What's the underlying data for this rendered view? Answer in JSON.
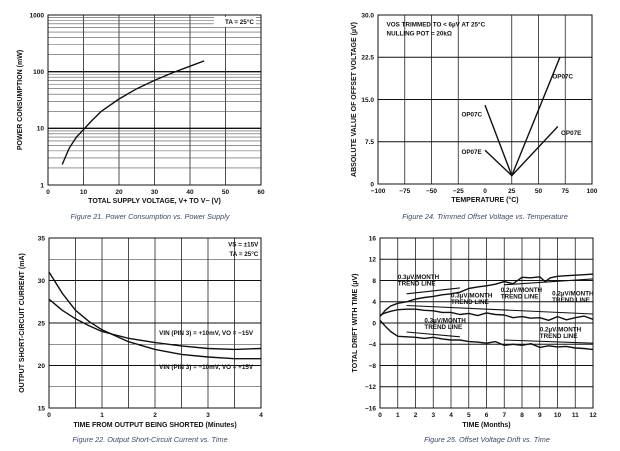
{
  "chart_data": [
    {
      "type": "line",
      "title": "Figure 21. Power Consumption vs. Power Supply",
      "xlabel": "TOTAL SUPPLY VOLTAGE, V+ TO V− (V)",
      "ylabel": "POWER CONSUMPTION (mW)",
      "xlim": [
        0,
        60
      ],
      "ylim": [
        1,
        1000
      ],
      "yscale": "log",
      "grid": true,
      "xticks": [
        0,
        10,
        20,
        30,
        40,
        50,
        60
      ],
      "xtick_labels": [
        "0",
        "10",
        "20",
        "30",
        "40",
        "50",
        "60"
      ],
      "yticks": [
        1,
        10,
        100,
        1000
      ],
      "ytick_labels": [
        "1",
        "10",
        "100",
        "1000"
      ],
      "annotations": [
        {
          "text": "TA = 25°C",
          "x": 58,
          "y": 700,
          "anchor": "end",
          "boxed": true
        }
      ],
      "series": [
        {
          "name": "power-consumption",
          "x": [
            4,
            6,
            8,
            10,
            12,
            15,
            20,
            25,
            30,
            35,
            40,
            44
          ],
          "y": [
            2.3,
            4.5,
            7,
            9.5,
            13,
            20,
            33,
            50,
            70,
            95,
            125,
            155
          ]
        }
      ]
    },
    {
      "type": "line",
      "title": "Figure 24. Trimmed Offset Voltage vs. Temperature",
      "xlabel": "TEMPERATURE (°C)",
      "ylabel": "ABSOLUTE VALUE OF OFFSET VOLTAGE (µV)",
      "xlim": [
        -100,
        100
      ],
      "ylim": [
        0,
        30
      ],
      "grid": true,
      "xticks": [
        -100,
        -75,
        -50,
        -25,
        0,
        25,
        50,
        75,
        100
      ],
      "xtick_labels": [
        "−100",
        "−75",
        "−50",
        "−25",
        "0",
        "25",
        "50",
        "75",
        "100"
      ],
      "yticks": [
        0,
        7.5,
        15,
        22.5,
        30
      ],
      "ytick_labels": [
        "0",
        "7.5",
        "15.0",
        "22.5",
        "30.0"
      ],
      "annotations": [
        {
          "text": "VOS TRIMMED TO < 6µV AT 25°C",
          "x": -92,
          "y": 28,
          "anchor": "start"
        },
        {
          "text": "NULLING POT = 20kΩ",
          "x": -92,
          "y": 26.4,
          "anchor": "start"
        },
        {
          "text": "OP07C",
          "x": -22,
          "y": 12,
          "anchor": "start"
        },
        {
          "text": "OP07E",
          "x": -22,
          "y": 5.3,
          "anchor": "start"
        },
        {
          "text": "OP07C",
          "x": 63,
          "y": 18.7,
          "anchor": "start"
        },
        {
          "text": "OP07E",
          "x": 71,
          "y": 8.7,
          "anchor": "start"
        }
      ],
      "series": [
        {
          "name": "OP07C",
          "x": [
            0,
            25,
            70
          ],
          "y": [
            14,
            1.5,
            22.5
          ]
        },
        {
          "name": "OP07E",
          "x": [
            0,
            25,
            68
          ],
          "y": [
            6,
            1.5,
            10.2
          ]
        }
      ]
    },
    {
      "type": "line",
      "title": "Figure 22. Output Short-Circuit Current vs. Time",
      "xlabel": "TIME FROM OUTPUT BEING SHORTED (Minutes)",
      "ylabel": "OUTPUT SHORT-CIRCUIT CURRENT (mA)",
      "xlim": [
        0,
        4
      ],
      "ylim": [
        15,
        35
      ],
      "grid": true,
      "xticks": [
        0,
        1,
        2,
        3,
        4
      ],
      "xtick_labels": [
        "0",
        "1",
        "2",
        "3",
        "4"
      ],
      "yticks": [
        15,
        20,
        25,
        30,
        35
      ],
      "ytick_labels": [
        "15",
        "20",
        "25",
        "30",
        "35"
      ],
      "annotations": [
        {
          "text": "VS = ±15V",
          "x": 3.95,
          "y": 34,
          "anchor": "end"
        },
        {
          "text": "TA = 25°C",
          "x": 3.95,
          "y": 32.9,
          "anchor": "end"
        },
        {
          "text": "VIN (PIN 3) = +10mV, VO = −15V",
          "x": 3.85,
          "y": 23.6,
          "anchor": "end"
        },
        {
          "text": "VIN (PIN 3) = −10mV, VO = +15V",
          "x": 3.85,
          "y": 19.6,
          "anchor": "end"
        }
      ],
      "series": [
        {
          "name": "VIN +10mV, VO -15V",
          "x": [
            0,
            0.25,
            0.5,
            0.75,
            1,
            1.5,
            2,
            2.5,
            3,
            3.5,
            4
          ],
          "y": [
            27.8,
            26.5,
            25.5,
            24.7,
            24,
            23.2,
            22.7,
            22.3,
            22,
            21.9,
            22
          ]
        },
        {
          "name": "VIN -10mV, VO +15V",
          "x": [
            0,
            0.25,
            0.5,
            0.75,
            1,
            1.5,
            2,
            2.5,
            3,
            3.5,
            4
          ],
          "y": [
            31,
            28.5,
            26.5,
            25.2,
            24.2,
            22.8,
            21.9,
            21.3,
            21,
            20.8,
            20.8
          ]
        }
      ]
    },
    {
      "type": "line",
      "title": "Figure 25. Offset Voltage Drift vs. Time",
      "xlabel": "TIME (Months)",
      "ylabel": "TOTAL DRIFT WITH TIME (µV)",
      "xlim": [
        0,
        12
      ],
      "ylim": [
        -16,
        16
      ],
      "grid": true,
      "xticks": [
        0,
        1,
        2,
        3,
        4,
        5,
        6,
        7,
        8,
        9,
        10,
        11,
        12
      ],
      "xtick_labels": [
        "0",
        "1",
        "2",
        "3",
        "4",
        "5",
        "6",
        "7",
        "8",
        "9",
        "10",
        "11",
        "12"
      ],
      "yticks": [
        -16,
        -12,
        -8,
        -4,
        0,
        4,
        8,
        12,
        16
      ],
      "ytick_labels": [
        "−16",
        "−12",
        "−8",
        "−4",
        "0",
        "4",
        "8",
        "12",
        "16"
      ],
      "annotations": [
        {
          "text": "0.3µV/MONTH",
          "x": 1,
          "y": 8.3,
          "anchor": "start"
        },
        {
          "text": "TREND LINE",
          "x": 1,
          "y": 7.1,
          "anchor": "start"
        },
        {
          "text": "0.3µV/MONTH",
          "x": 4,
          "y": 4.8,
          "anchor": "start"
        },
        {
          "text": "TREND LINE",
          "x": 4,
          "y": 3.6,
          "anchor": "start"
        },
        {
          "text": "0.2µV/MONTH",
          "x": 6.8,
          "y": 5.8,
          "anchor": "start"
        },
        {
          "text": "TREND LINE",
          "x": 6.8,
          "y": 4.6,
          "anchor": "start"
        },
        {
          "text": "0.2µV/MONTH",
          "x": 9.7,
          "y": 5.2,
          "anchor": "start"
        },
        {
          "text": "TREND LINE",
          "x": 9.7,
          "y": 4.0,
          "anchor": "start"
        },
        {
          "text": "0.3µV/MONTH",
          "x": 2.5,
          "y": 0.1,
          "anchor": "start"
        },
        {
          "text": "TREND LINE",
          "x": 2.5,
          "y": -1.1,
          "anchor": "start"
        },
        {
          "text": "0.2µV/MONTH",
          "x": 9,
          "y": -1.6,
          "anchor": "start"
        },
        {
          "text": "TREND LINE",
          "x": 9,
          "y": -2.8,
          "anchor": "start"
        }
      ],
      "series": [
        {
          "name": "unit-1",
          "x": [
            0,
            0.3,
            0.6,
            1,
            1.5,
            2,
            2.5,
            3,
            3.5,
            4,
            4.5,
            5,
            5.5,
            6,
            6.5,
            7,
            7.5,
            8,
            8.5,
            9,
            9.3,
            9.6,
            10,
            10.5,
            11,
            11.5,
            12
          ],
          "y": [
            1.2,
            2.4,
            3.2,
            3.7,
            4.0,
            4.5,
            4.8,
            5.0,
            5.3,
            5.5,
            5.8,
            6.5,
            6.8,
            7.0,
            7.3,
            7.8,
            7.4,
            8.6,
            8.5,
            8.7,
            7.8,
            8.5,
            8.8,
            8.9,
            9.0,
            9.1,
            9.2
          ]
        },
        {
          "name": "unit-2",
          "x": [
            0,
            0.3,
            0.6,
            1,
            1.5,
            2,
            2.5,
            3,
            3.5,
            4,
            4.5,
            5,
            5.5,
            6,
            6.5,
            7,
            7.5,
            8,
            8.5,
            9,
            9.5,
            10,
            10.5,
            11,
            11.5,
            12
          ],
          "y": [
            1.5,
            1.9,
            2.2,
            2.5,
            2.6,
            2.6,
            2.4,
            2.3,
            2.0,
            2.0,
            1.6,
            1.8,
            1.4,
            1.9,
            1.6,
            1.5,
            1.0,
            1.2,
            0.9,
            1.0,
            0.5,
            1.2,
            0.6,
            1.0,
            1.3,
            0.7
          ]
        },
        {
          "name": "unit-3",
          "x": [
            0,
            0.3,
            0.6,
            1,
            1.5,
            2,
            2.5,
            3,
            3.5,
            4,
            4.5,
            5,
            5.5,
            6,
            6.5,
            7,
            7.5,
            8,
            8.5,
            9,
            9.5,
            10,
            10.5,
            11,
            11.5,
            12
          ],
          "y": [
            0.5,
            -0.6,
            -1.6,
            -2.5,
            -2.6,
            -2.7,
            -2.9,
            -2.7,
            -3.0,
            -3.2,
            -3.2,
            -3.5,
            -3.6,
            -3.8,
            -3.5,
            -4.2,
            -4.0,
            -4.2,
            -3.9,
            -4.6,
            -4.3,
            -4.5,
            -4.4,
            -4.7,
            -4.8,
            -5.0
          ]
        },
        {
          "name": "trend-0.3-upper",
          "x": [
            1.5,
            4.5
          ],
          "y": [
            5.5,
            6.6
          ]
        },
        {
          "name": "trend-0.3-middle",
          "x": [
            1.5,
            12
          ],
          "y": [
            3.3,
            1.7
          ]
        },
        {
          "name": "trend-0.3-lower",
          "x": [
            1.5,
            4.5
          ],
          "y": [
            -1.7,
            -2.6
          ]
        },
        {
          "name": "trend-0.2-upper",
          "x": [
            7,
            12
          ],
          "y": [
            7.2,
            8.3
          ]
        },
        {
          "name": "trend-0.2-lower",
          "x": [
            7,
            12
          ],
          "y": [
            -3.2,
            -3.8
          ]
        }
      ]
    }
  ]
}
